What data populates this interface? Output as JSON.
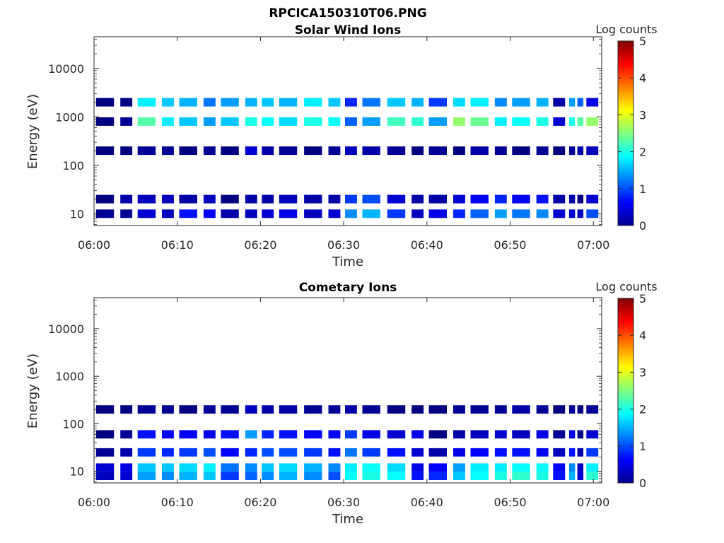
{
  "figure_title": "RPCICA150310T06.PNG",
  "chart_data": [
    {
      "type": "heatmap",
      "title": "Solar Wind Ions",
      "xlabel": "Time",
      "ylabel": "Energy (eV)",
      "x_ticks": [
        "06:00",
        "06:10",
        "06:20",
        "06:30",
        "06:40",
        "06:50",
        "07:00"
      ],
      "xlim": [
        "06:00",
        "07:01"
      ],
      "y_ticks": [
        "10",
        "100",
        "1000",
        "10000"
      ],
      "ylim": [
        5.7,
        45000
      ],
      "yscale": "log",
      "colorbar": {
        "label": "Log counts",
        "ticks": [
          "0",
          "1",
          "2",
          "3",
          "4",
          "5"
        ],
        "range": [
          0,
          5
        ],
        "colormap": "jet"
      },
      "time_columns": [
        "06:00",
        "06:03",
        "06:05",
        "06:08",
        "06:10",
        "06:13",
        "06:15",
        "06:18",
        "06:20",
        "06:22",
        "06:25",
        "06:28",
        "06:30",
        "06:32",
        "06:35",
        "06:38",
        "06:40",
        "06:43",
        "06:45",
        "06:48",
        "06:50",
        "06:53",
        "06:55",
        "06:57",
        "06:58",
        "06:59"
      ],
      "bands": [
        {
          "name": "10 eV",
          "energy_eV": 10,
          "log_counts": [
            0.1,
            0.1,
            0.4,
            0.3,
            0.7,
            0.6,
            0.2,
            0.3,
            0.4,
            0.5,
            0.3,
            0.4,
            1.3,
            1.5,
            0.9,
            0.3,
            0.5,
            0.8,
            1.1,
            1.4,
            1.2,
            1.3,
            0.4,
            0.4,
            0.3,
            1.0
          ]
        },
        {
          "name": "20 eV",
          "energy_eV": 20,
          "log_counts": [
            0.0,
            0.2,
            0.3,
            0.3,
            0.2,
            0.3,
            0.0,
            0.2,
            0.2,
            0.3,
            0.2,
            0.2,
            0.9,
            1.0,
            0.4,
            0.2,
            0.2,
            0.4,
            0.6,
            0.8,
            0.6,
            0.7,
            0.2,
            0.2,
            0.0,
            0.4
          ]
        },
        {
          "name": "200 eV",
          "energy_eV": 200,
          "log_counts": [
            0.0,
            0.0,
            0.1,
            0.1,
            0.0,
            0.1,
            0.0,
            0.4,
            0.2,
            0.1,
            0.0,
            0.1,
            0.3,
            0.2,
            0.1,
            0.0,
            0.1,
            0.0,
            0.2,
            0.1,
            0.0,
            0.1,
            0.0,
            0.1,
            0.2,
            0.3
          ]
        },
        {
          "name": "800 eV",
          "energy_eV": 800,
          "log_counts": [
            0.0,
            0.1,
            2.3,
            1.8,
            1.6,
            1.4,
            1.6,
            2.0,
            1.9,
            1.7,
            2.0,
            1.9,
            1.1,
            1.4,
            2.2,
            2.1,
            1.4,
            2.6,
            2.4,
            1.8,
            1.9,
            2.0,
            0.4,
            2.0,
            2.3,
            2.6
          ]
        },
        {
          "name": "2000 eV",
          "energy_eV": 2000,
          "log_counts": [
            0.0,
            0.0,
            1.8,
            1.6,
            1.5,
            1.2,
            1.4,
            1.5,
            1.6,
            1.5,
            1.8,
            1.6,
            0.8,
            1.2,
            1.6,
            1.5,
            0.9,
            1.7,
            1.8,
            1.3,
            1.4,
            1.5,
            0.2,
            1.4,
            1.1,
            0.5
          ]
        }
      ]
    },
    {
      "type": "heatmap",
      "title": "Cometary Ions",
      "xlabel": "Time",
      "ylabel": "Energy (eV)",
      "x_ticks": [
        "06:00",
        "06:10",
        "06:20",
        "06:30",
        "06:40",
        "06:50",
        "07:00"
      ],
      "xlim": [
        "06:00",
        "07:01"
      ],
      "y_ticks": [
        "10",
        "100",
        "1000",
        "10000"
      ],
      "ylim": [
        5.7,
        45000
      ],
      "yscale": "log",
      "colorbar": {
        "label": "Log counts",
        "ticks": [
          "0",
          "1",
          "2",
          "3",
          "4",
          "5"
        ],
        "range": [
          0,
          5
        ],
        "colormap": "jet"
      },
      "time_columns": [
        "06:00",
        "06:03",
        "06:05",
        "06:08",
        "06:10",
        "06:13",
        "06:15",
        "06:18",
        "06:20",
        "06:22",
        "06:25",
        "06:28",
        "06:30",
        "06:32",
        "06:35",
        "06:38",
        "06:40",
        "06:43",
        "06:45",
        "06:48",
        "06:50",
        "06:53",
        "06:55",
        "06:57",
        "06:58",
        "06:59"
      ],
      "bands": [
        {
          "name": "8 eV",
          "energy_eV": 8,
          "log_counts": [
            0.3,
            0.4,
            1.4,
            1.3,
            1.5,
            1.6,
            0.9,
            1.1,
            1.3,
            1.5,
            1.3,
            1.0,
            1.9,
            2.0,
            1.9,
            0.7,
            0.8,
            1.6,
            1.9,
            2.0,
            2.1,
            2.0,
            0.7,
            1.5,
            0.4,
            2.1
          ]
        },
        {
          "name": "12 eV",
          "energy_eV": 12,
          "log_counts": [
            0.4,
            0.5,
            1.6,
            1.6,
            1.7,
            1.8,
            1.2,
            1.3,
            1.6,
            1.7,
            1.5,
            1.3,
            1.8,
            1.9,
            1.7,
            0.5,
            0.6,
            1.4,
            1.8,
            1.8,
            1.9,
            1.9,
            0.6,
            1.3,
            0.3,
            1.8
          ]
        },
        {
          "name": "25 eV",
          "energy_eV": 25,
          "log_counts": [
            0.1,
            0.2,
            0.9,
            0.8,
            0.9,
            1.0,
            0.6,
            0.8,
            1.0,
            1.0,
            0.9,
            0.7,
            1.2,
            0.9,
            0.7,
            0.4,
            0.2,
            0.5,
            0.6,
            0.7,
            0.7,
            0.6,
            0.3,
            0.7,
            0.2,
            0.9
          ]
        },
        {
          "name": "60 eV",
          "energy_eV": 60,
          "log_counts": [
            0.0,
            0.1,
            0.7,
            0.6,
            0.6,
            0.5,
            0.7,
            1.4,
            0.8,
            0.7,
            0.6,
            0.6,
            0.9,
            0.5,
            0.4,
            0.5,
            0.0,
            0.2,
            0.3,
            0.4,
            0.3,
            0.5,
            0.1,
            0.5,
            0.0,
            0.4
          ]
        },
        {
          "name": "200 eV",
          "energy_eV": 200,
          "log_counts": [
            0.0,
            0.0,
            0.1,
            0.1,
            0.0,
            0.1,
            0.1,
            0.3,
            0.2,
            0.2,
            0.1,
            0.1,
            0.2,
            0.1,
            0.0,
            0.0,
            0.0,
            0.1,
            0.1,
            0.1,
            0.2,
            0.1,
            0.0,
            0.1,
            0.0,
            0.1
          ]
        }
      ]
    }
  ]
}
